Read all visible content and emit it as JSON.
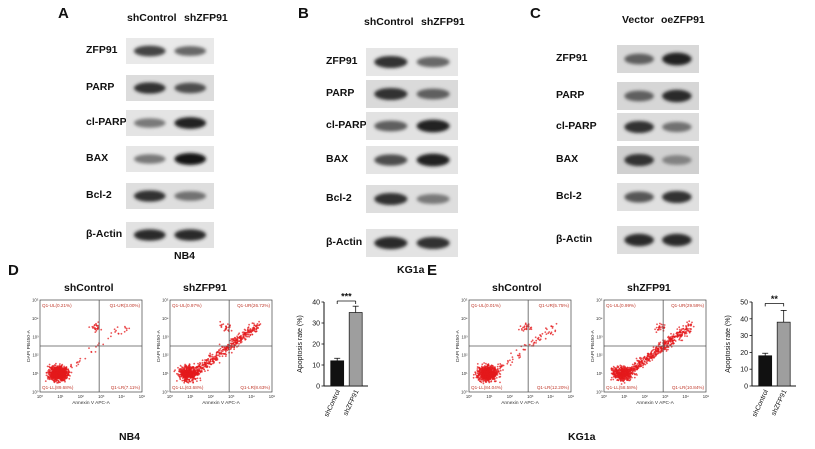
{
  "panel_a": {
    "label": "A",
    "columns": [
      "shControl",
      "shZFP91"
    ],
    "rows": [
      "ZFP91",
      "PARP",
      "cl-PARP",
      "BAX",
      "Bcl-2",
      "β-Actin"
    ],
    "cell_line": "NB4",
    "bands": [
      [
        0.75,
        0.55
      ],
      [
        0.85,
        0.7
      ],
      [
        0.45,
        0.95
      ],
      [
        0.45,
        1.0
      ],
      [
        0.85,
        0.5
      ],
      [
        0.9,
        0.9
      ]
    ]
  },
  "panel_b": {
    "label": "B",
    "columns": [
      "shControl",
      "shZFP91"
    ],
    "rows": [
      "ZFP91",
      "PARP",
      "cl-PARP",
      "BAX",
      "Bcl-2",
      "β-Actin"
    ],
    "cell_line": "KG1a",
    "bands": [
      [
        0.85,
        0.55
      ],
      [
        0.85,
        0.6
      ],
      [
        0.6,
        0.95
      ],
      [
        0.7,
        0.95
      ],
      [
        0.85,
        0.45
      ],
      [
        0.9,
        0.85
      ]
    ]
  },
  "panel_c": {
    "label": "C",
    "columns": [
      "Vector",
      "oeZFP91"
    ],
    "rows": [
      "ZFP91",
      "PARP",
      "cl-PARP",
      "BAX",
      "Bcl-2",
      "β-Actin"
    ],
    "bands": [
      [
        0.6,
        0.95
      ],
      [
        0.6,
        0.9
      ],
      [
        0.85,
        0.5
      ],
      [
        0.85,
        0.4
      ],
      [
        0.65,
        0.85
      ],
      [
        0.9,
        0.9
      ]
    ]
  },
  "panel_d": {
    "label": "D",
    "cell_line": "NB4",
    "plots": [
      {
        "title": "shControl",
        "q_ul": "Q1-UL(0.21%)",
        "q_ur": "Q1-UR(3.00%)",
        "q_ll": "Q1-LL(89.68%)",
        "q_lr": "Q1-LR(7.11%)",
        "xlabel": "Annexin V APC-A",
        "ylabel": "DAPI PB450-A"
      },
      {
        "title": "shZFP91",
        "q_ul": "Q1-UL(0.97%)",
        "q_ur": "Q1-UR(26.72%)",
        "q_ll": "Q1-LL(63.68%)",
        "q_lr": "Q1-LR(8.63%)",
        "xlabel": "Annexin V APC-A",
        "ylabel": "DAPI PB450-A"
      }
    ],
    "ticks": [
      "10⁰",
      "10¹",
      "10²",
      "10³",
      "10⁴",
      "10⁵"
    ]
  },
  "panel_e": {
    "label": "E",
    "cell_line": "KG1a",
    "plots": [
      {
        "title": "shControl",
        "q_ul": "Q1-UL(0.01%)",
        "q_ur": "Q1-UR(5.75%)",
        "q_ll": "Q1-LL(84.04%)",
        "q_lr": "Q1-LR(12.20%)",
        "xlabel": "Annexin V APC-A",
        "ylabel": "DAPI PB450-A"
      },
      {
        "title": "shZFP91",
        "q_ul": "Q1-UL(0.99%)",
        "q_ur": "Q1-UR(29.59%)",
        "q_ll": "Q1-LL(58.58%)",
        "q_lr": "Q1-LR(10.84%)",
        "xlabel": "Annexin V APC-A",
        "ylabel": "DAPI PB450-A"
      }
    ],
    "ticks": [
      "10⁰",
      "10¹",
      "10²",
      "10³",
      "10⁴",
      "10⁵"
    ]
  },
  "chart_data": [
    {
      "type": "bar",
      "categories": [
        "shControl",
        "shZFP91"
      ],
      "values": [
        12,
        35
      ],
      "errors": [
        1.2,
        3
      ],
      "colors": [
        "#111111",
        "#9e9e9e"
      ],
      "ylabel": "Apoptosis rate (%)",
      "ylim": [
        0,
        40
      ],
      "yticks": [
        0,
        10,
        20,
        30,
        40
      ],
      "significance": "***"
    },
    {
      "type": "bar",
      "categories": [
        "shControl",
        "shZFP91"
      ],
      "values": [
        18,
        38
      ],
      "errors": [
        1.5,
        7
      ],
      "colors": [
        "#111111",
        "#9e9e9e"
      ],
      "ylabel": "Apoptosis rate (%)",
      "ylim": [
        0,
        50
      ],
      "yticks": [
        0,
        10,
        20,
        30,
        40,
        50
      ],
      "significance": "**"
    }
  ]
}
